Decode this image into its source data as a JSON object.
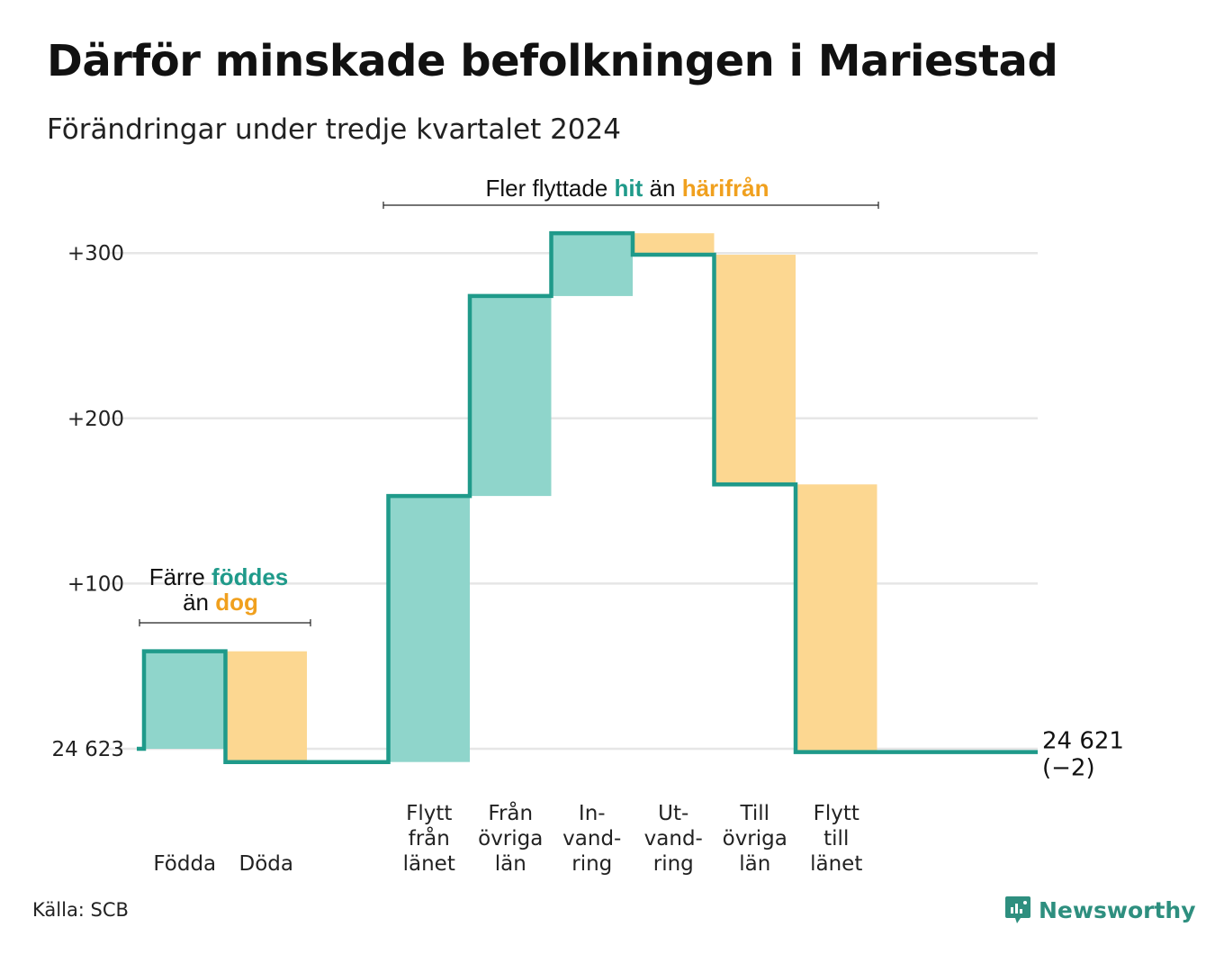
{
  "title": "Därför minskade befolkningen i Mariestad",
  "subtitle": "Förändringar under tredje kvartalet 2024",
  "source": "Källa: SCB",
  "brand": "Newsworthy",
  "colors": {
    "teal_fill": "#8fd5cb",
    "orange_fill": "#fcd791",
    "line": "#1f9a8a",
    "teal_text": "#1f9a8a",
    "orange_text": "#f0a01e",
    "grid": "#e6e6e6"
  },
  "annotations": {
    "births": {
      "pre": "Färre",
      "hl1": "föddes",
      "mid": "än",
      "hl2": "dog"
    },
    "moves": {
      "pre": "Fler flyttade",
      "hl1": "hit",
      "mid": "än",
      "hl2": "härifrån"
    }
  },
  "chart_data": {
    "type": "waterfall",
    "title": "Därför minskade befolkningen i Mariestad",
    "subtitle": "Förändringar under tredje kvartalet 2024",
    "baseline": 24623,
    "ylim": [
      -20,
      340
    ],
    "yticks": [
      {
        "value": 0,
        "label": "24 623"
      },
      {
        "value": 100,
        "label": "+100"
      },
      {
        "value": 200,
        "label": "+200"
      },
      {
        "value": 300,
        "label": "+300"
      }
    ],
    "steps": [
      {
        "name": "Födda",
        "label": [
          "Födda"
        ],
        "change": 59,
        "kind": "in"
      },
      {
        "name": "Döda",
        "label": [
          "Döda"
        ],
        "change": -67,
        "kind": "out"
      },
      {
        "name": "gap",
        "label": [],
        "change": 0,
        "kind": "gap"
      },
      {
        "name": "Flytt från länet",
        "label": [
          "Flytt",
          "från",
          "länet"
        ],
        "change": 161,
        "kind": "in"
      },
      {
        "name": "Från övriga län",
        "label": [
          "Från",
          "övriga",
          "län"
        ],
        "change": 121,
        "kind": "in"
      },
      {
        "name": "Invandring",
        "label": [
          "In-",
          "vand-",
          "ring"
        ],
        "change": 38,
        "kind": "in"
      },
      {
        "name": "Utvandring",
        "label": [
          "Ut-",
          "vand-",
          "ring"
        ],
        "change": -13,
        "kind": "out"
      },
      {
        "name": "Till övriga län",
        "label": [
          "Till",
          "övriga",
          "län"
        ],
        "change": -139,
        "kind": "out"
      },
      {
        "name": "Flytt till länet",
        "label": [
          "Flytt",
          "till",
          "länet"
        ],
        "change": -162,
        "kind": "out"
      }
    ],
    "end_value": "24 621",
    "end_change": "(−2)",
    "grid": true
  }
}
